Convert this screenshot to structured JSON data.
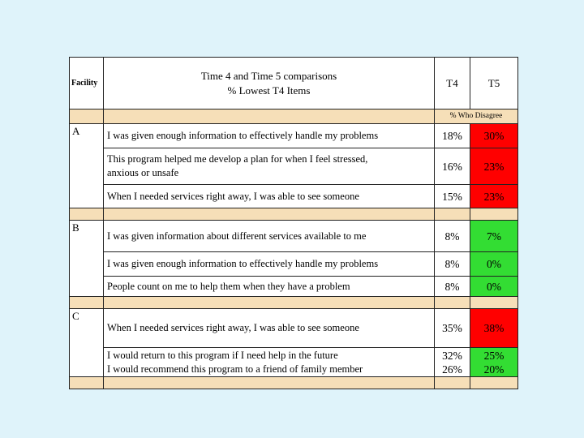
{
  "header": {
    "facility": "Facility",
    "title_line1": "Time 4 and Time 5 comparisons",
    "title_line2": "% Lowest T4 Items",
    "col_t4": "T4",
    "col_t5": "T5",
    "subheader": "% Who Disagree"
  },
  "groups": [
    {
      "label": "A",
      "rows": [
        {
          "lines": [
            "I was given enough information to effectively handle my problems"
          ],
          "t4": [
            "18%"
          ],
          "t5": [
            "30%"
          ],
          "status": "worse"
        },
        {
          "lines": [
            "This program helped me develop a plan for when I feel stressed,",
            "anxious or unsafe"
          ],
          "t4": [
            "16%"
          ],
          "t5": [
            "23%"
          ],
          "status": "worse"
        },
        {
          "lines": [
            "When I needed services right away,  I was able to see someone"
          ],
          "t4": [
            "15%"
          ],
          "t5": [
            "23%"
          ],
          "status": "worse"
        }
      ]
    },
    {
      "label": "B",
      "rows": [
        {
          "lines": [
            "I was given information about different services available to me"
          ],
          "t4": [
            "8%"
          ],
          "t5": [
            "7%"
          ],
          "status": "better"
        },
        {
          "lines": [
            "I was given enough information to effectively handle my problems"
          ],
          "t4": [
            "8%"
          ],
          "t5": [
            "0%"
          ],
          "status": "better"
        },
        {
          "lines": [
            "People count on me to help them when they have a problem"
          ],
          "t4": [
            "8%"
          ],
          "t5": [
            "0%"
          ],
          "status": "better"
        }
      ]
    },
    {
      "label": "C",
      "rows": [
        {
          "lines": [
            "When I needed services right away, I was able to see someone"
          ],
          "t4": [
            "35%"
          ],
          "t5": [
            "38%"
          ],
          "status": "worse"
        },
        {
          "lines": [
            "I would return to this program if I need help  in the future",
            "I would recommend this program to a friend of family member"
          ],
          "t4": [
            "32%",
            "26%"
          ],
          "t5": [
            "25%",
            "20%"
          ],
          "status": "better"
        }
      ]
    }
  ],
  "colors": {
    "background": "#dff3fa",
    "worse": "#ff0000",
    "better": "#33dd33",
    "band": "#f6dfb8"
  }
}
